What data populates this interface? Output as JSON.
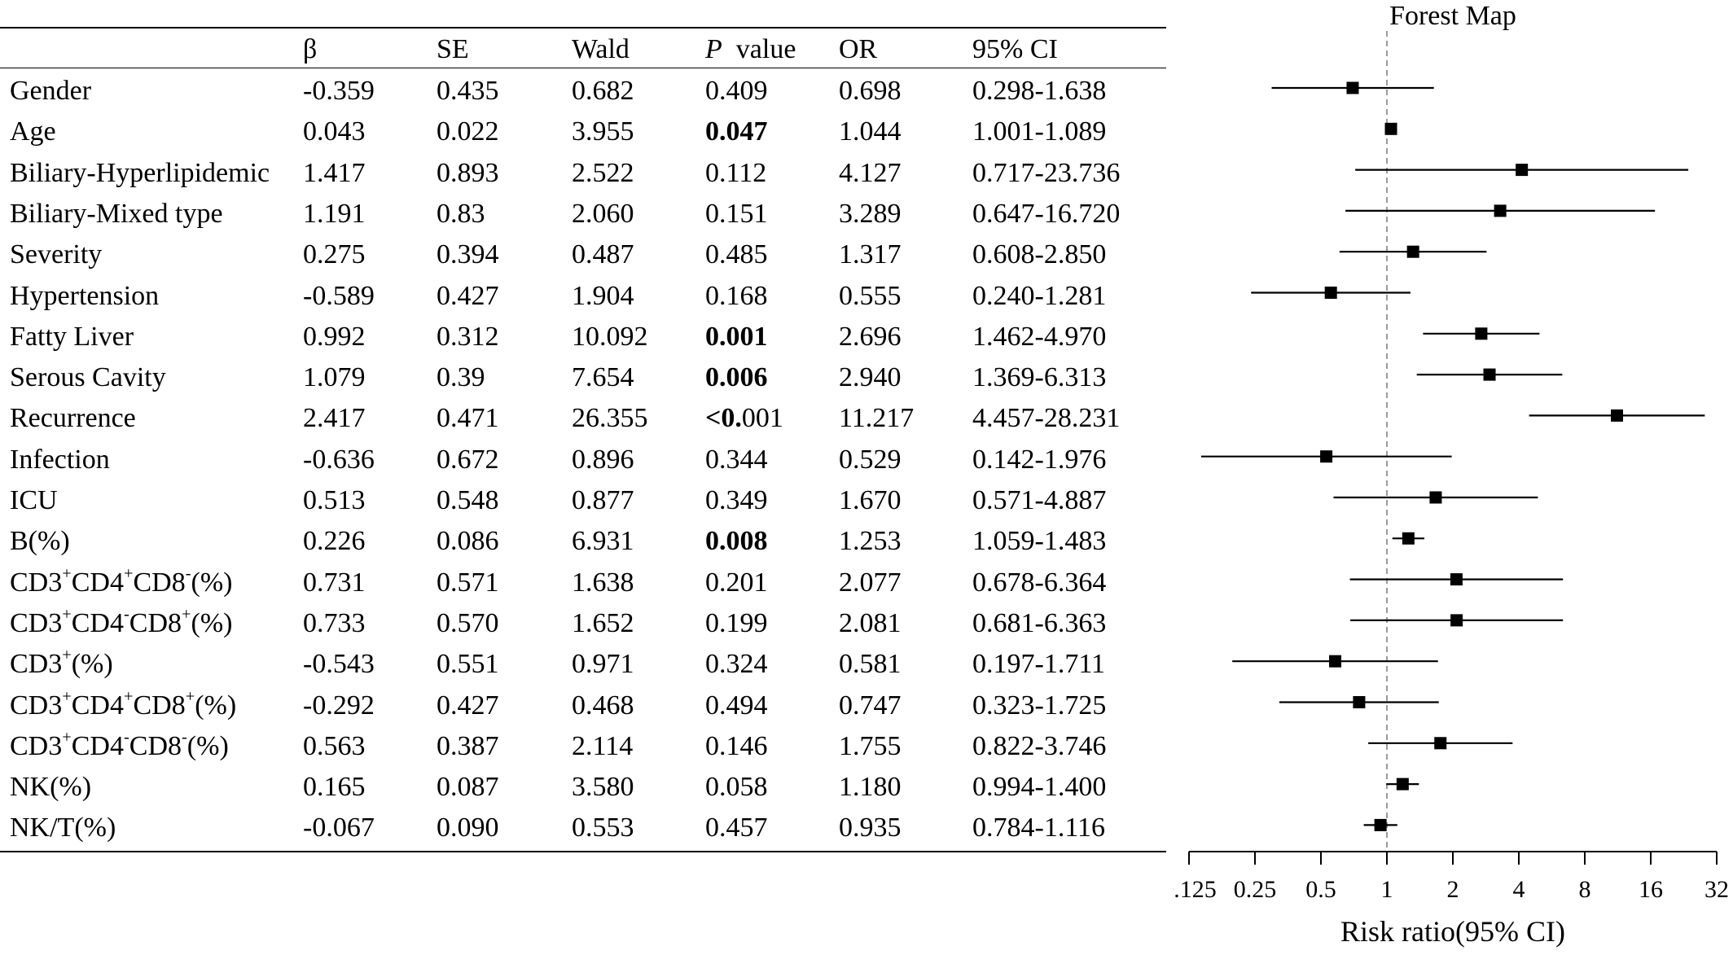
{
  "table": {
    "headers": [
      "",
      "β",
      "SE",
      "Wald",
      "P value",
      "OR",
      "95% CI"
    ],
    "header_p_italic": "P",
    "header_p_rest": "  value",
    "rows": [
      {
        "name_html": "Gender",
        "beta": "-0.359",
        "se": "0.435",
        "wald": "0.682",
        "p": "0.409",
        "p_bold": false,
        "or": "0.698",
        "ci": "0.298-1.638"
      },
      {
        "name_html": "Age",
        "beta": "0.043",
        "se": "0.022",
        "wald": "3.955",
        "p": "0.047",
        "p_bold": true,
        "or": "1.044",
        "ci": "1.001-1.089"
      },
      {
        "name_html": "Biliary-Hyperlipidemic",
        "beta": "1.417",
        "se": "0.893",
        "wald": "2.522",
        "p": "0.112",
        "p_bold": false,
        "or": "4.127",
        "ci": "0.717-23.736"
      },
      {
        "name_html": "Biliary-Mixed type",
        "beta": "1.191",
        "se": "0.83",
        "wald": "2.060",
        "p": "0.151",
        "p_bold": false,
        "or": "3.289",
        "ci": "0.647-16.720"
      },
      {
        "name_html": "Severity",
        "beta": "0.275",
        "se": "0.394",
        "wald": "0.487",
        "p": "0.485",
        "p_bold": false,
        "or": "1.317",
        "ci": "0.608-2.850"
      },
      {
        "name_html": "Hypertension",
        "beta": "-0.589",
        "se": "0.427",
        "wald": "1.904",
        "p": "0.168",
        "p_bold": false,
        "or": "0.555",
        "ci": "0.240-1.281"
      },
      {
        "name_html": "Fatty Liver",
        "beta": "0.992",
        "se": "0.312",
        "wald": "10.092",
        "p": "0.001",
        "p_bold": true,
        "or": "2.696",
        "ci": "1.462-4.970"
      },
      {
        "name_html": "Serous Cavity",
        "beta": "1.079",
        "se": "0.39",
        "wald": "7.654",
        "p": "0.006",
        "p_bold": true,
        "or": "2.940",
        "ci": "1.369-6.313"
      },
      {
        "name_html": "Recurrence",
        "beta": "2.417",
        "se": "0.471",
        "wald": "26.355",
        "p": "<0.001",
        "p_bold": "partial",
        "or": "11.217",
        "ci": "4.457-28.231"
      },
      {
        "name_html": "Infection",
        "beta": "-0.636",
        "se": "0.672",
        "wald": "0.896",
        "p": "0.344",
        "p_bold": false,
        "or": "0.529",
        "ci": "0.142-1.976"
      },
      {
        "name_html": "ICU",
        "beta": "0.513",
        "se": "0.548",
        "wald": "0.877",
        "p": "0.349",
        "p_bold": false,
        "or": "1.670",
        "ci": "0.571-4.887"
      },
      {
        "name_html": "B(%)",
        "beta": "0.226",
        "se": "0.086",
        "wald": "6.931",
        "p": "0.008",
        "p_bold": true,
        "or": "1.253",
        "ci": "1.059-1.483"
      },
      {
        "name_html": "CD3<sup>+</sup>CD4<sup>+</sup>CD8<sup>-</sup>(%)",
        "beta": "0.731",
        "se": "0.571",
        "wald": "1.638",
        "p": "0.201",
        "p_bold": false,
        "or": "2.077",
        "ci": "0.678-6.364"
      },
      {
        "name_html": "CD3<sup>+</sup>CD4<sup>-</sup>CD8<sup>+</sup>(%)",
        "beta": "0.733",
        "se": "0.570",
        "wald": "1.652",
        "p": "0.199",
        "p_bold": false,
        "or": "2.081",
        "ci": "0.681-6.363"
      },
      {
        "name_html": "CD3<sup>+</sup>(%)",
        "beta": "-0.543",
        "se": "0.551",
        "wald": "0.971",
        "p": "0.324",
        "p_bold": false,
        "or": "0.581",
        "ci": "0.197-1.711"
      },
      {
        "name_html": "CD3<sup>+</sup>CD4<sup>+</sup>CD8<sup>+</sup>(%)",
        "beta": "-0.292",
        "se": "0.427",
        "wald": "0.468",
        "p": "0.494",
        "p_bold": false,
        "or": "0.747",
        "ci": "0.323-1.725"
      },
      {
        "name_html": "CD3<sup>+</sup>CD4<sup>-</sup>CD8<sup>-</sup>(%)",
        "beta": "0.563",
        "se": "0.387",
        "wald": "2.114",
        "p": "0.146",
        "p_bold": false,
        "or": "1.755",
        "ci": "0.822-3.746"
      },
      {
        "name_html": "NK(%)",
        "beta": "0.165",
        "se": "0.087",
        "wald": "3.580",
        "p": "0.058",
        "p_bold": false,
        "or": "1.180",
        "ci": "0.994-1.400"
      },
      {
        "name_html": "NK/T(%)",
        "beta": "-0.067",
        "se": "0.090",
        "wald": "0.553",
        "p": "0.457",
        "p_bold": false,
        "or": "0.935",
        "ci": "0.784-1.116"
      }
    ]
  },
  "chart_data": {
    "type": "forest",
    "title": "Forest Map",
    "xlabel": "Risk ratio(95% CI)",
    "x_scale": "log2",
    "xlim": [
      0.125,
      32
    ],
    "ticks": [
      0.125,
      0.25,
      0.5,
      1,
      2,
      4,
      8,
      16,
      32
    ],
    "tick_labels": [
      "0.125",
      "0.25",
      "0.5",
      "1",
      "2",
      "4",
      "8",
      "16",
      "32"
    ],
    "reference_line": 1,
    "reference_line_style": "dashed",
    "marker_color": "#000000",
    "reference_color": "#9a9a9a",
    "points": [
      {
        "label": "Gender",
        "or": 0.698,
        "lower": 0.298,
        "upper": 1.638
      },
      {
        "label": "Age",
        "or": 1.044,
        "lower": 1.001,
        "upper": 1.089
      },
      {
        "label": "Biliary-Hyperlipidemic",
        "or": 4.127,
        "lower": 0.717,
        "upper": 23.736
      },
      {
        "label": "Biliary-Mixed type",
        "or": 3.289,
        "lower": 0.647,
        "upper": 16.72
      },
      {
        "label": "Severity",
        "or": 1.317,
        "lower": 0.608,
        "upper": 2.85
      },
      {
        "label": "Hypertension",
        "or": 0.555,
        "lower": 0.24,
        "upper": 1.281
      },
      {
        "label": "Fatty Liver",
        "or": 2.696,
        "lower": 1.462,
        "upper": 4.97
      },
      {
        "label": "Serous Cavity",
        "or": 2.94,
        "lower": 1.369,
        "upper": 6.313
      },
      {
        "label": "Recurrence",
        "or": 11.217,
        "lower": 4.457,
        "upper": 28.231
      },
      {
        "label": "Infection",
        "or": 0.529,
        "lower": 0.142,
        "upper": 1.976
      },
      {
        "label": "ICU",
        "or": 1.67,
        "lower": 0.571,
        "upper": 4.887
      },
      {
        "label": "B(%)",
        "or": 1.253,
        "lower": 1.059,
        "upper": 1.483
      },
      {
        "label": "CD3+CD4+CD8-(%)",
        "or": 2.077,
        "lower": 0.678,
        "upper": 6.364
      },
      {
        "label": "CD3+CD4-CD8+(%)",
        "or": 2.081,
        "lower": 0.681,
        "upper": 6.363
      },
      {
        "label": "CD3+(%)",
        "or": 0.581,
        "lower": 0.197,
        "upper": 1.711
      },
      {
        "label": "CD3+CD4+CD8+(%)",
        "or": 0.747,
        "lower": 0.323,
        "upper": 1.725
      },
      {
        "label": "CD3+CD4-CD8-(%)",
        "or": 1.755,
        "lower": 0.822,
        "upper": 3.746
      },
      {
        "label": "NK(%)",
        "or": 1.18,
        "lower": 0.994,
        "upper": 1.4
      },
      {
        "label": "NK/T(%)",
        "or": 0.935,
        "lower": 0.784,
        "upper": 1.116
      }
    ]
  }
}
